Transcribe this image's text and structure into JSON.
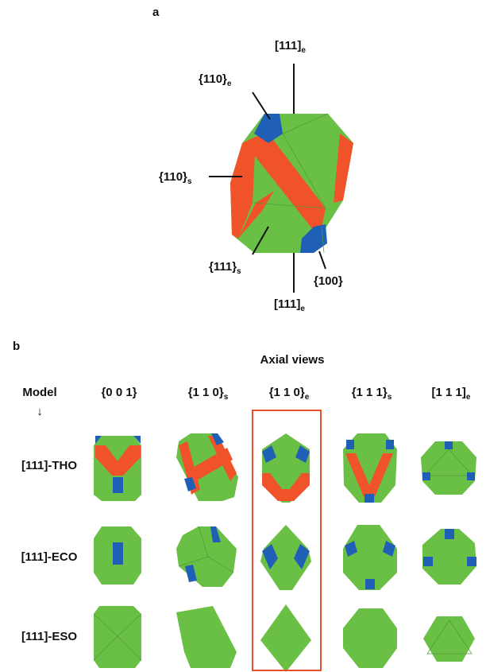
{
  "panel_a": {
    "label": "a",
    "annotations": [
      {
        "text": "[111]",
        "sub": "e"
      },
      {
        "text": "{110}",
        "sub": "e"
      },
      {
        "text": "{110}",
        "sub": "s"
      },
      {
        "text": "{111}",
        "sub": "s"
      },
      {
        "text": "{100}"
      },
      {
        "text": "[111]",
        "sub": "e"
      }
    ]
  },
  "panel_b": {
    "label": "b",
    "title": "Axial views",
    "model_header": "Model",
    "arrow": "↓",
    "columns": [
      {
        "text": "{0 0 1}"
      },
      {
        "text": "{1 1 0}",
        "sub": "s"
      },
      {
        "text": "{1 1 0}",
        "sub": "e"
      },
      {
        "text": "{1 1 1}",
        "sub": "s"
      },
      {
        "text": "[1 1 1]",
        "sub": "e"
      }
    ],
    "rows": [
      "[111]-THO",
      "[111]-ECO",
      "[111]-ESO"
    ]
  }
}
